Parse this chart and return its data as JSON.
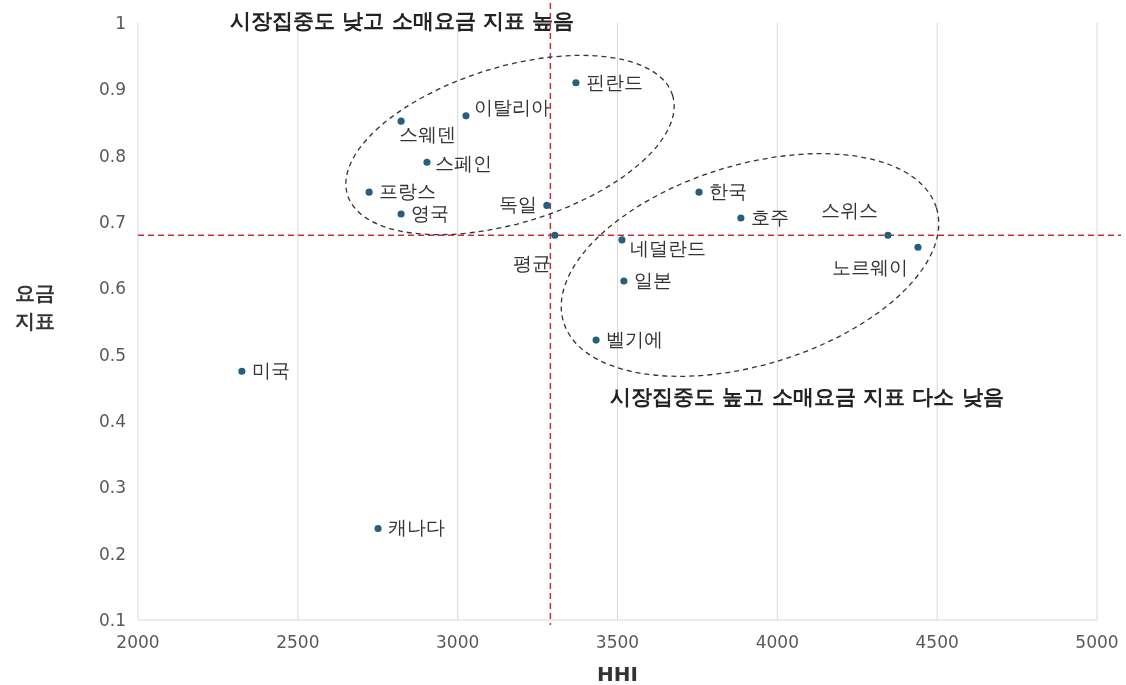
{
  "chart_data": {
    "type": "scatter",
    "xlabel": "HHI",
    "ylabel": "요금\n지표",
    "xlim": [
      2000,
      5000
    ],
    "xticks": [
      2000,
      2500,
      3000,
      3500,
      4000,
      4500,
      5000
    ],
    "ylim": [
      0.1,
      1
    ],
    "yticks": [
      0.1,
      0.2,
      0.3,
      0.4,
      0.5,
      0.6,
      0.7,
      0.8,
      0.9,
      1
    ],
    "grid": "x",
    "marker": "circle",
    "series": [
      {
        "color": "#255e7e",
        "x": [
          3370,
          3026,
          2823,
          2904,
          2723,
          2823,
          3279,
          3304,
          3755,
          3886,
          4346,
          4440,
          3514,
          3520,
          3433,
          2325,
          2751
        ],
        "values": [
          0.91,
          0.86,
          0.852,
          0.79,
          0.745,
          0.712,
          0.725,
          0.68,
          0.745,
          0.706,
          0.68,
          0.662,
          0.673,
          0.611,
          0.522,
          0.475,
          0.238
        ]
      }
    ],
    "ref_lines": [
      {
        "axis": "x",
        "value": 3290,
        "color": "#c0303a",
        "line_style": "dashed"
      },
      {
        "axis": "y",
        "value": 0.68,
        "color": "#c0303a",
        "line_style": "dashed"
      }
    ],
    "annotations": [
      {
        "text": "핀란드",
        "x": 3370,
        "y": 0.91
      },
      {
        "text": "이탈리아",
        "x": 3026,
        "y": 0.86
      },
      {
        "text": "스웨덴",
        "x": 2823,
        "y": 0.852
      },
      {
        "text": "스페인",
        "x": 2904,
        "y": 0.79
      },
      {
        "text": "프랑스",
        "x": 2723,
        "y": 0.745
      },
      {
        "text": "영국",
        "x": 2823,
        "y": 0.712
      },
      {
        "text": "독일",
        "x": 3279,
        "y": 0.725
      },
      {
        "text": "평균",
        "x": 3304,
        "y": 0.68
      },
      {
        "text": "한국",
        "x": 3755,
        "y": 0.745
      },
      {
        "text": "호주",
        "x": 3886,
        "y": 0.706
      },
      {
        "text": "스위스",
        "x": 4346,
        "y": 0.68
      },
      {
        "text": "노르웨이",
        "x": 4440,
        "y": 0.662
      },
      {
        "text": "네덜란드",
        "x": 3514,
        "y": 0.673
      },
      {
        "text": "일본",
        "x": 3520,
        "y": 0.611
      },
      {
        "text": "벨기에",
        "x": 3433,
        "y": 0.522
      },
      {
        "text": "미국",
        "x": 2325,
        "y": 0.475
      },
      {
        "text": "캐나다",
        "x": 2751,
        "y": 0.238
      },
      "시장집중도 낮고 소매요금 지표 높음",
      "시장집중도 높고 소매요금 지표 다소 낮음"
    ]
  }
}
